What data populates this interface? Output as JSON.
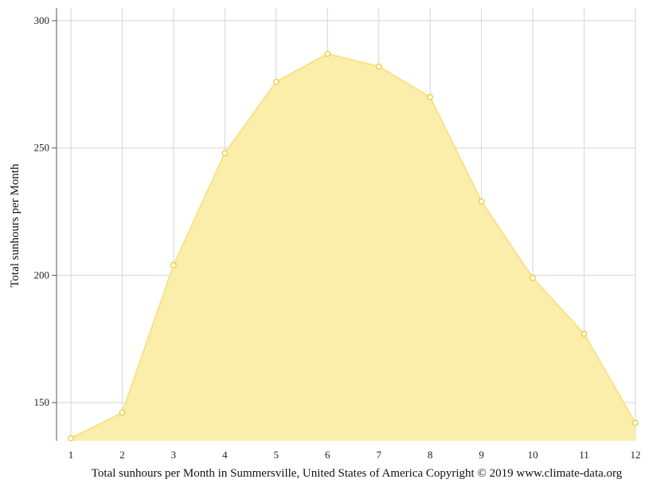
{
  "chart_data": {
    "type": "area",
    "x": [
      1,
      2,
      3,
      4,
      5,
      6,
      7,
      8,
      9,
      10,
      11,
      12
    ],
    "series": [
      {
        "values": [
          136,
          146,
          204,
          248,
          276,
          287,
          282,
          270,
          229,
          199,
          177,
          142
        ]
      }
    ],
    "ylabel": "Total sunhours per Month",
    "caption": "Total sunhours per Month in Summersville, United States of America Copyright © 2019 www.climate-data.org",
    "yticks": [
      150,
      200,
      250,
      300
    ],
    "xticks": [
      1,
      2,
      3,
      4,
      5,
      6,
      7,
      8,
      9,
      10,
      11,
      12
    ],
    "ylim": [
      135,
      305
    ],
    "xlim": [
      1,
      12
    ],
    "grid": true,
    "fill_color": "#faeeaa",
    "line_color": "#f7e38a",
    "marker_edge_color": "#e8c930"
  }
}
